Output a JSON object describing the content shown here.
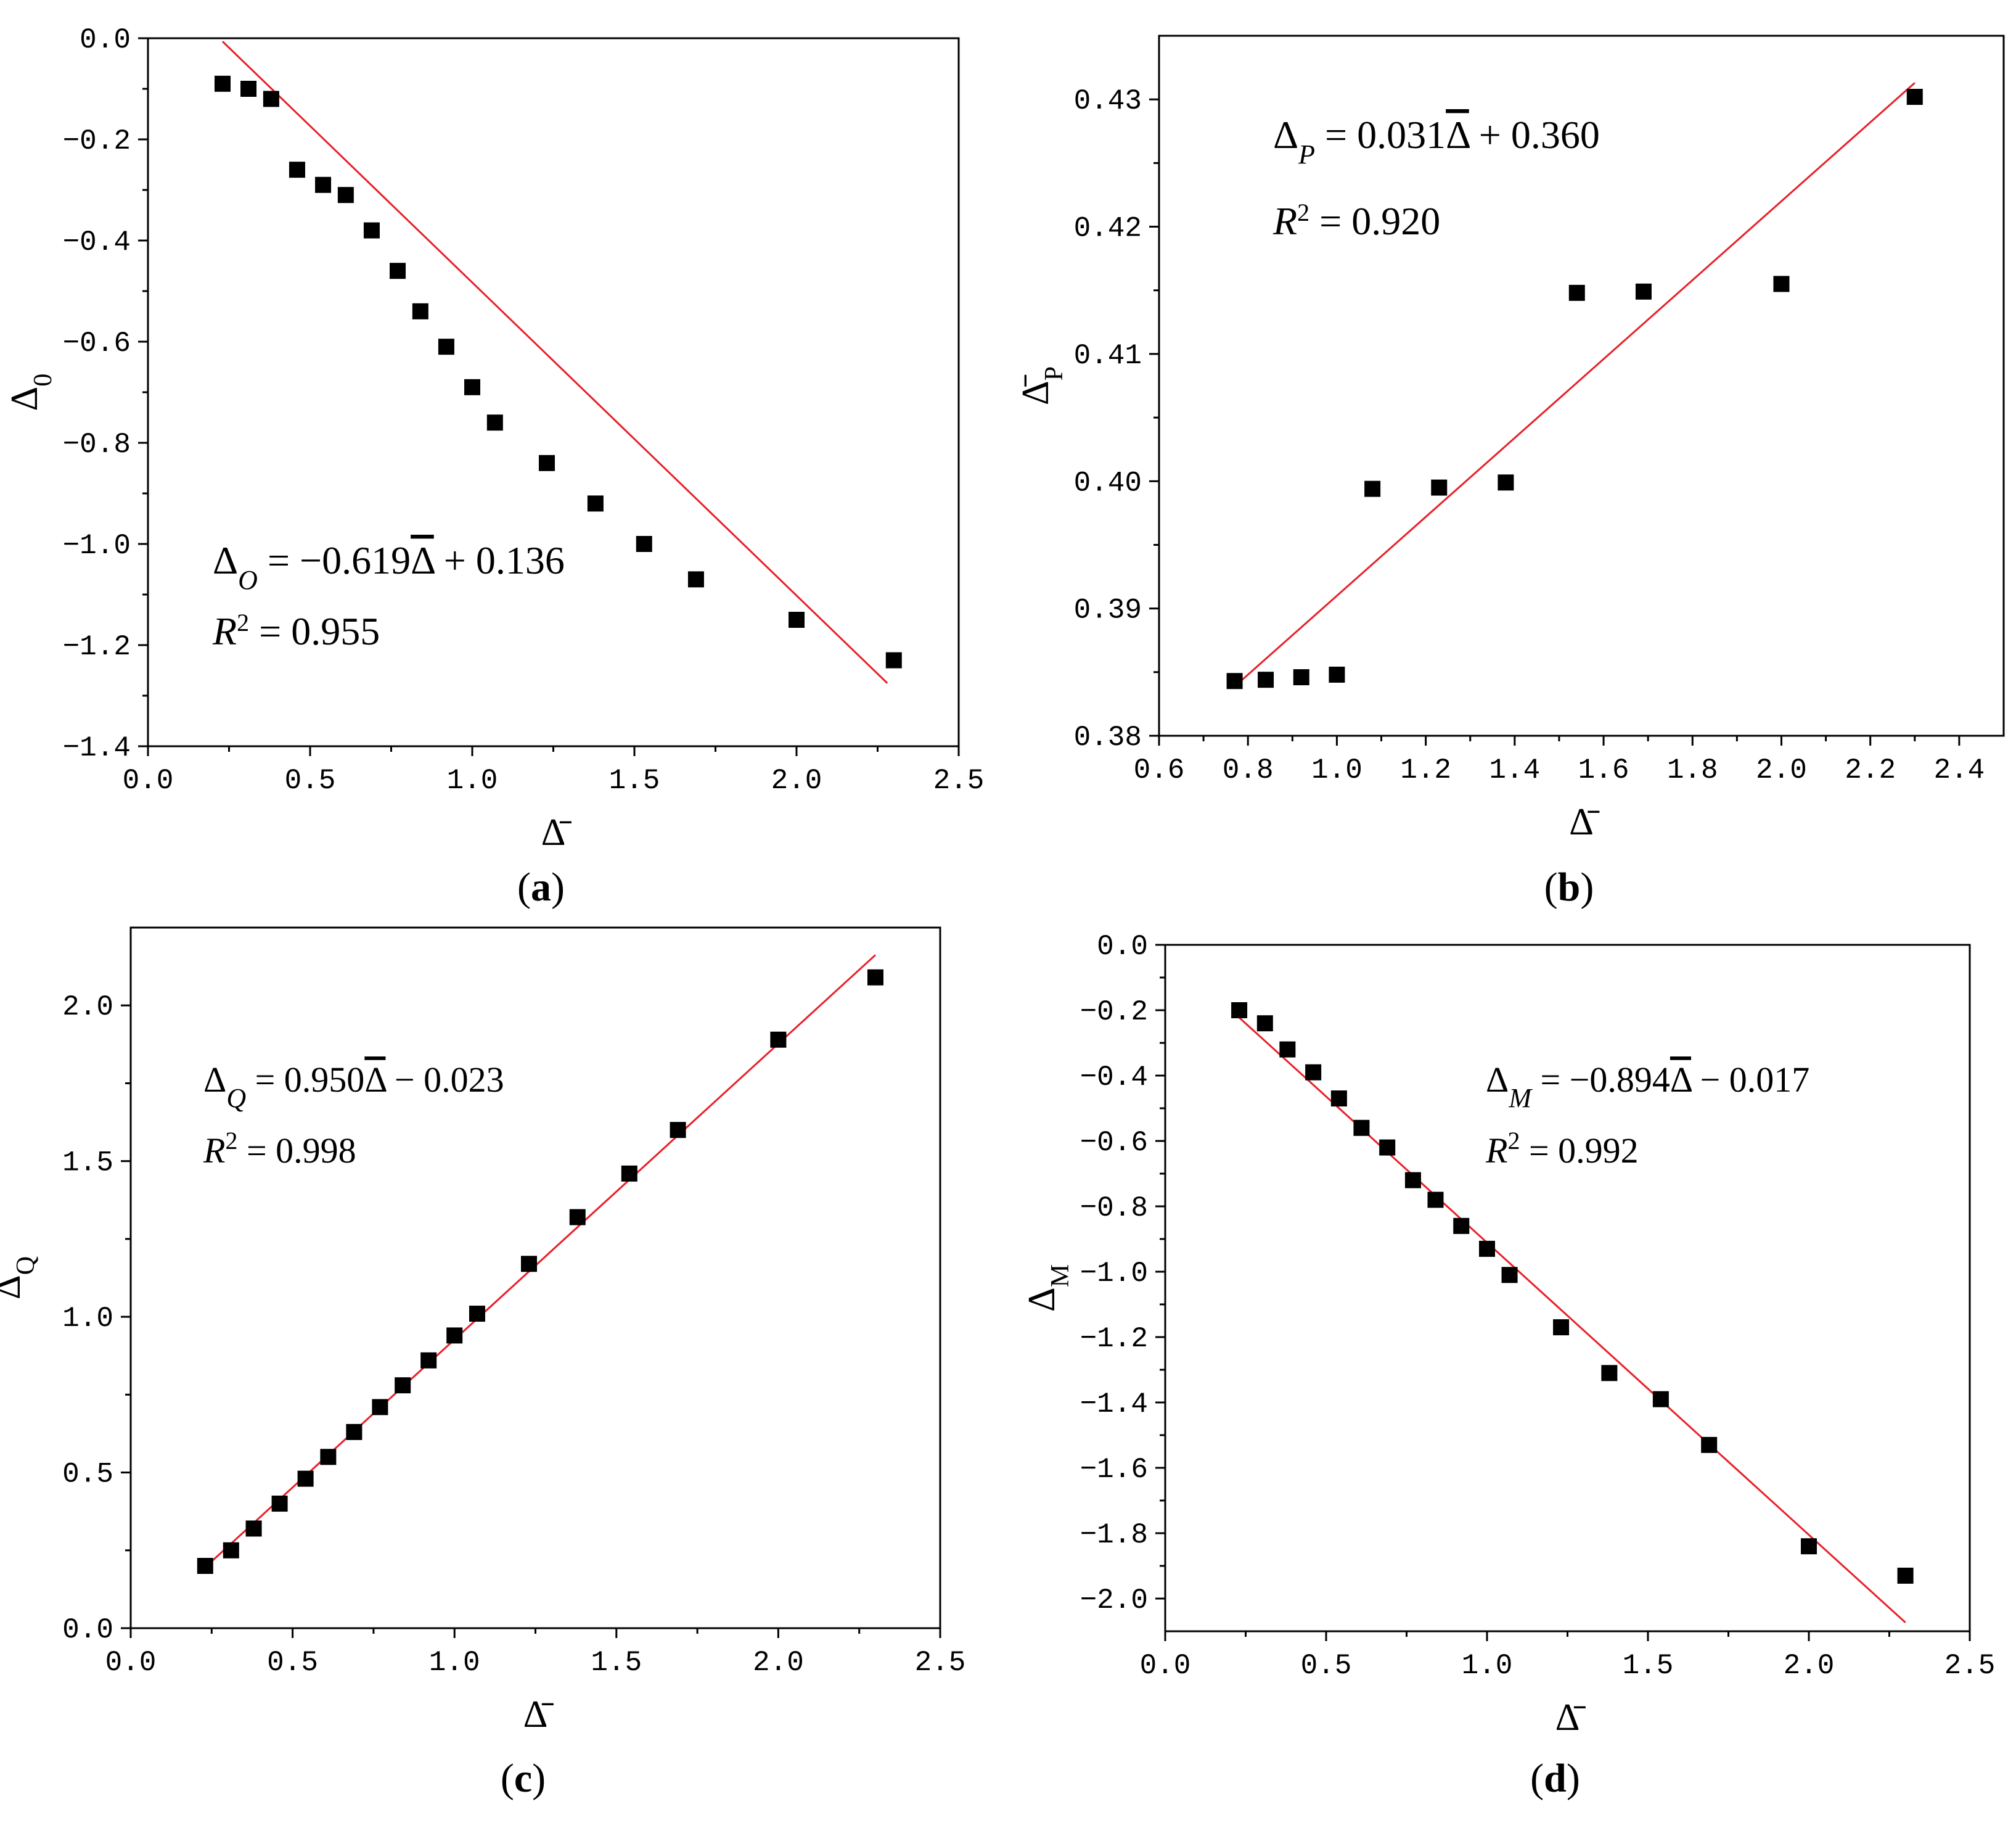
{
  "chart_data": [
    {
      "type": "scatter",
      "panel": "(a)",
      "panel_letter": "a",
      "xlabel": "Δ̄",
      "ylabel": "Δ",
      "ylabel_sub": "0",
      "xlim": [
        0.0,
        2.5
      ],
      "ylim": [
        -1.4,
        0.0
      ],
      "xticks": [
        0.0,
        0.5,
        1.0,
        1.5,
        2.0,
        2.5
      ],
      "yticks": [
        0.0,
        -0.2,
        -0.4,
        -0.6,
        -0.8,
        -1.0,
        -1.2,
        -1.4
      ],
      "xtick_labels": [
        "0.0",
        "0.5",
        "1.0",
        "1.5",
        "2.0",
        "2.5"
      ],
      "ytick_labels": [
        "0.0",
        "−0.2",
        "−0.4",
        "−0.6",
        "−0.8",
        "−1.0",
        "−1.2",
        "−1.4"
      ],
      "x": [
        0.23,
        0.31,
        0.38,
        0.46,
        0.54,
        0.61,
        0.69,
        0.77,
        0.84,
        0.92,
        1.0,
        1.07,
        1.23,
        1.38,
        1.53,
        1.69,
        2.0,
        2.3
      ],
      "y": [
        -0.09,
        -0.1,
        -0.12,
        -0.26,
        -0.29,
        -0.31,
        -0.38,
        -0.46,
        -0.54,
        -0.61,
        -0.69,
        -0.76,
        -0.84,
        -0.92,
        -1.0,
        -1.07,
        -1.15,
        -1.23
      ],
      "fit": {
        "slope": -0.619,
        "intercept": 0.136,
        "x0": 0.23,
        "x1": 2.28
      },
      "fit_color": "#e8202a",
      "marker_color": "#000000",
      "equation": {
        "lhs": "Δ",
        "sub": "O",
        "rhs": " = −0.619",
        "bar": "Δ",
        "rest": " + 0.136"
      },
      "r2": {
        "r": "R",
        "sup": "2",
        "rest": " = 0.955"
      }
    },
    {
      "type": "scatter",
      "panel": "(b)",
      "panel_letter": "b",
      "xlabel": "Δ̄",
      "ylabel": "Δ̄",
      "ylabel_sub": "P",
      "xlim": [
        0.6,
        2.5
      ],
      "ylim": [
        0.38,
        0.435
      ],
      "xticks": [
        0.6,
        0.8,
        1.0,
        1.2,
        1.4,
        1.6,
        1.8,
        2.0,
        2.2,
        2.4
      ],
      "yticks": [
        0.38,
        0.39,
        0.4,
        0.41,
        0.42,
        0.43
      ],
      "xtick_labels": [
        "0.6",
        "0.8",
        "1.0",
        "1.2",
        "1.4",
        "1.6",
        "1.8",
        "2.0",
        "2.2",
        "2.4"
      ],
      "ytick_labels": [
        "0.38",
        "0.39",
        "0.40",
        "0.41",
        "0.42",
        "0.43"
      ],
      "x": [
        0.77,
        0.84,
        0.92,
        1.0,
        1.08,
        1.23,
        1.38,
        1.54,
        1.69,
        2.0,
        2.3
      ],
      "y": [
        0.3843,
        0.3844,
        0.3846,
        0.3848,
        0.3994,
        0.3995,
        0.3999,
        0.4148,
        0.4149,
        0.4155,
        0.4302
      ],
      "fit": {
        "slope": 0.031,
        "intercept": 0.36,
        "x0": 0.77,
        "x1": 2.3
      },
      "fit_color": "#e8202a",
      "marker_color": "#000000",
      "equation": {
        "lhs": "Δ",
        "sub": "P",
        "rhs": " = 0.031",
        "bar": "Δ",
        "rest": " + 0.360"
      },
      "r2": {
        "r": "R",
        "sup": "2",
        "rest": " = 0.920"
      }
    },
    {
      "type": "scatter",
      "panel": "(c)",
      "panel_letter": "c",
      "xlabel": "Δ̄",
      "ylabel": "Δ",
      "ylabel_sub": "Q",
      "xlim": [
        0.0,
        2.5
      ],
      "ylim": [
        0.0,
        2.25
      ],
      "xticks": [
        0.0,
        0.5,
        1.0,
        1.5,
        2.0,
        2.5
      ],
      "yticks": [
        0.0,
        0.5,
        1.0,
        1.5,
        2.0
      ],
      "xtick_labels": [
        "0.0",
        "0.5",
        "1.0",
        "1.5",
        "2.0",
        "2.5"
      ],
      "ytick_labels": [
        "0.0",
        "0.5",
        "1.0",
        "1.5",
        "2.0"
      ],
      "x": [
        0.23,
        0.31,
        0.38,
        0.46,
        0.54,
        0.61,
        0.69,
        0.77,
        0.84,
        0.92,
        1.0,
        1.07,
        1.23,
        1.38,
        1.54,
        1.69,
        2.0,
        2.3
      ],
      "y": [
        0.2,
        0.25,
        0.32,
        0.4,
        0.48,
        0.55,
        0.63,
        0.71,
        0.78,
        0.86,
        0.94,
        1.01,
        1.17,
        1.32,
        1.46,
        1.6,
        1.89,
        2.09
      ],
      "fit": {
        "slope": 0.95,
        "intercept": -0.023,
        "x0": 0.23,
        "x1": 2.3
      },
      "fit_color": "#e8202a",
      "marker_color": "#000000",
      "equation": {
        "lhs": "Δ",
        "sub": "Q",
        "rhs": " = 0.950",
        "bar": "Δ",
        "rest": " − 0.023"
      },
      "r2": {
        "r": "R",
        "sup": "2",
        "rest": " = 0.998"
      }
    },
    {
      "type": "scatter",
      "panel": "(d)",
      "panel_letter": "d",
      "xlabel": "Δ̄",
      "ylabel": "Δ",
      "ylabel_sub": "M",
      "xlim": [
        0.0,
        2.5
      ],
      "ylim": [
        -2.1,
        0.0
      ],
      "xticks": [
        0.0,
        0.5,
        1.0,
        1.5,
        2.0,
        2.5
      ],
      "yticks": [
        0.0,
        -0.2,
        -0.4,
        -0.6,
        -0.8,
        -1.0,
        -1.2,
        -1.4,
        -1.6,
        -1.8,
        -2.0
      ],
      "xtick_labels": [
        "0.0",
        "0.5",
        "1.0",
        "1.5",
        "2.0",
        "2.5"
      ],
      "ytick_labels": [
        "0.0",
        "−0.2",
        "−0.4",
        "−0.6",
        "−0.8",
        "−1.0",
        "−1.2",
        "−1.4",
        "−1.6",
        "−1.8",
        "−2.0"
      ],
      "x": [
        0.23,
        0.31,
        0.38,
        0.46,
        0.54,
        0.61,
        0.69,
        0.77,
        0.84,
        0.92,
        1.0,
        1.07,
        1.23,
        1.38,
        1.54,
        1.69,
        2.0,
        2.3
      ],
      "y": [
        -0.2,
        -0.24,
        -0.32,
        -0.39,
        -0.47,
        -0.56,
        -0.62,
        -0.72,
        -0.78,
        -0.86,
        -0.93,
        -1.01,
        -1.17,
        -1.31,
        -1.39,
        -1.53,
        -1.84,
        -1.93
      ],
      "fit": {
        "slope": -0.894,
        "intercept": -0.017,
        "x0": 0.23,
        "x1": 2.3
      },
      "fit_color": "#e8202a",
      "marker_color": "#000000",
      "equation": {
        "lhs": "Δ",
        "sub": "M",
        "rhs": " = −0.894",
        "bar": "Δ",
        "rest": " − 0.017"
      },
      "r2": {
        "r": "R",
        "sup": "2",
        "rest": " = 0.992"
      }
    }
  ]
}
